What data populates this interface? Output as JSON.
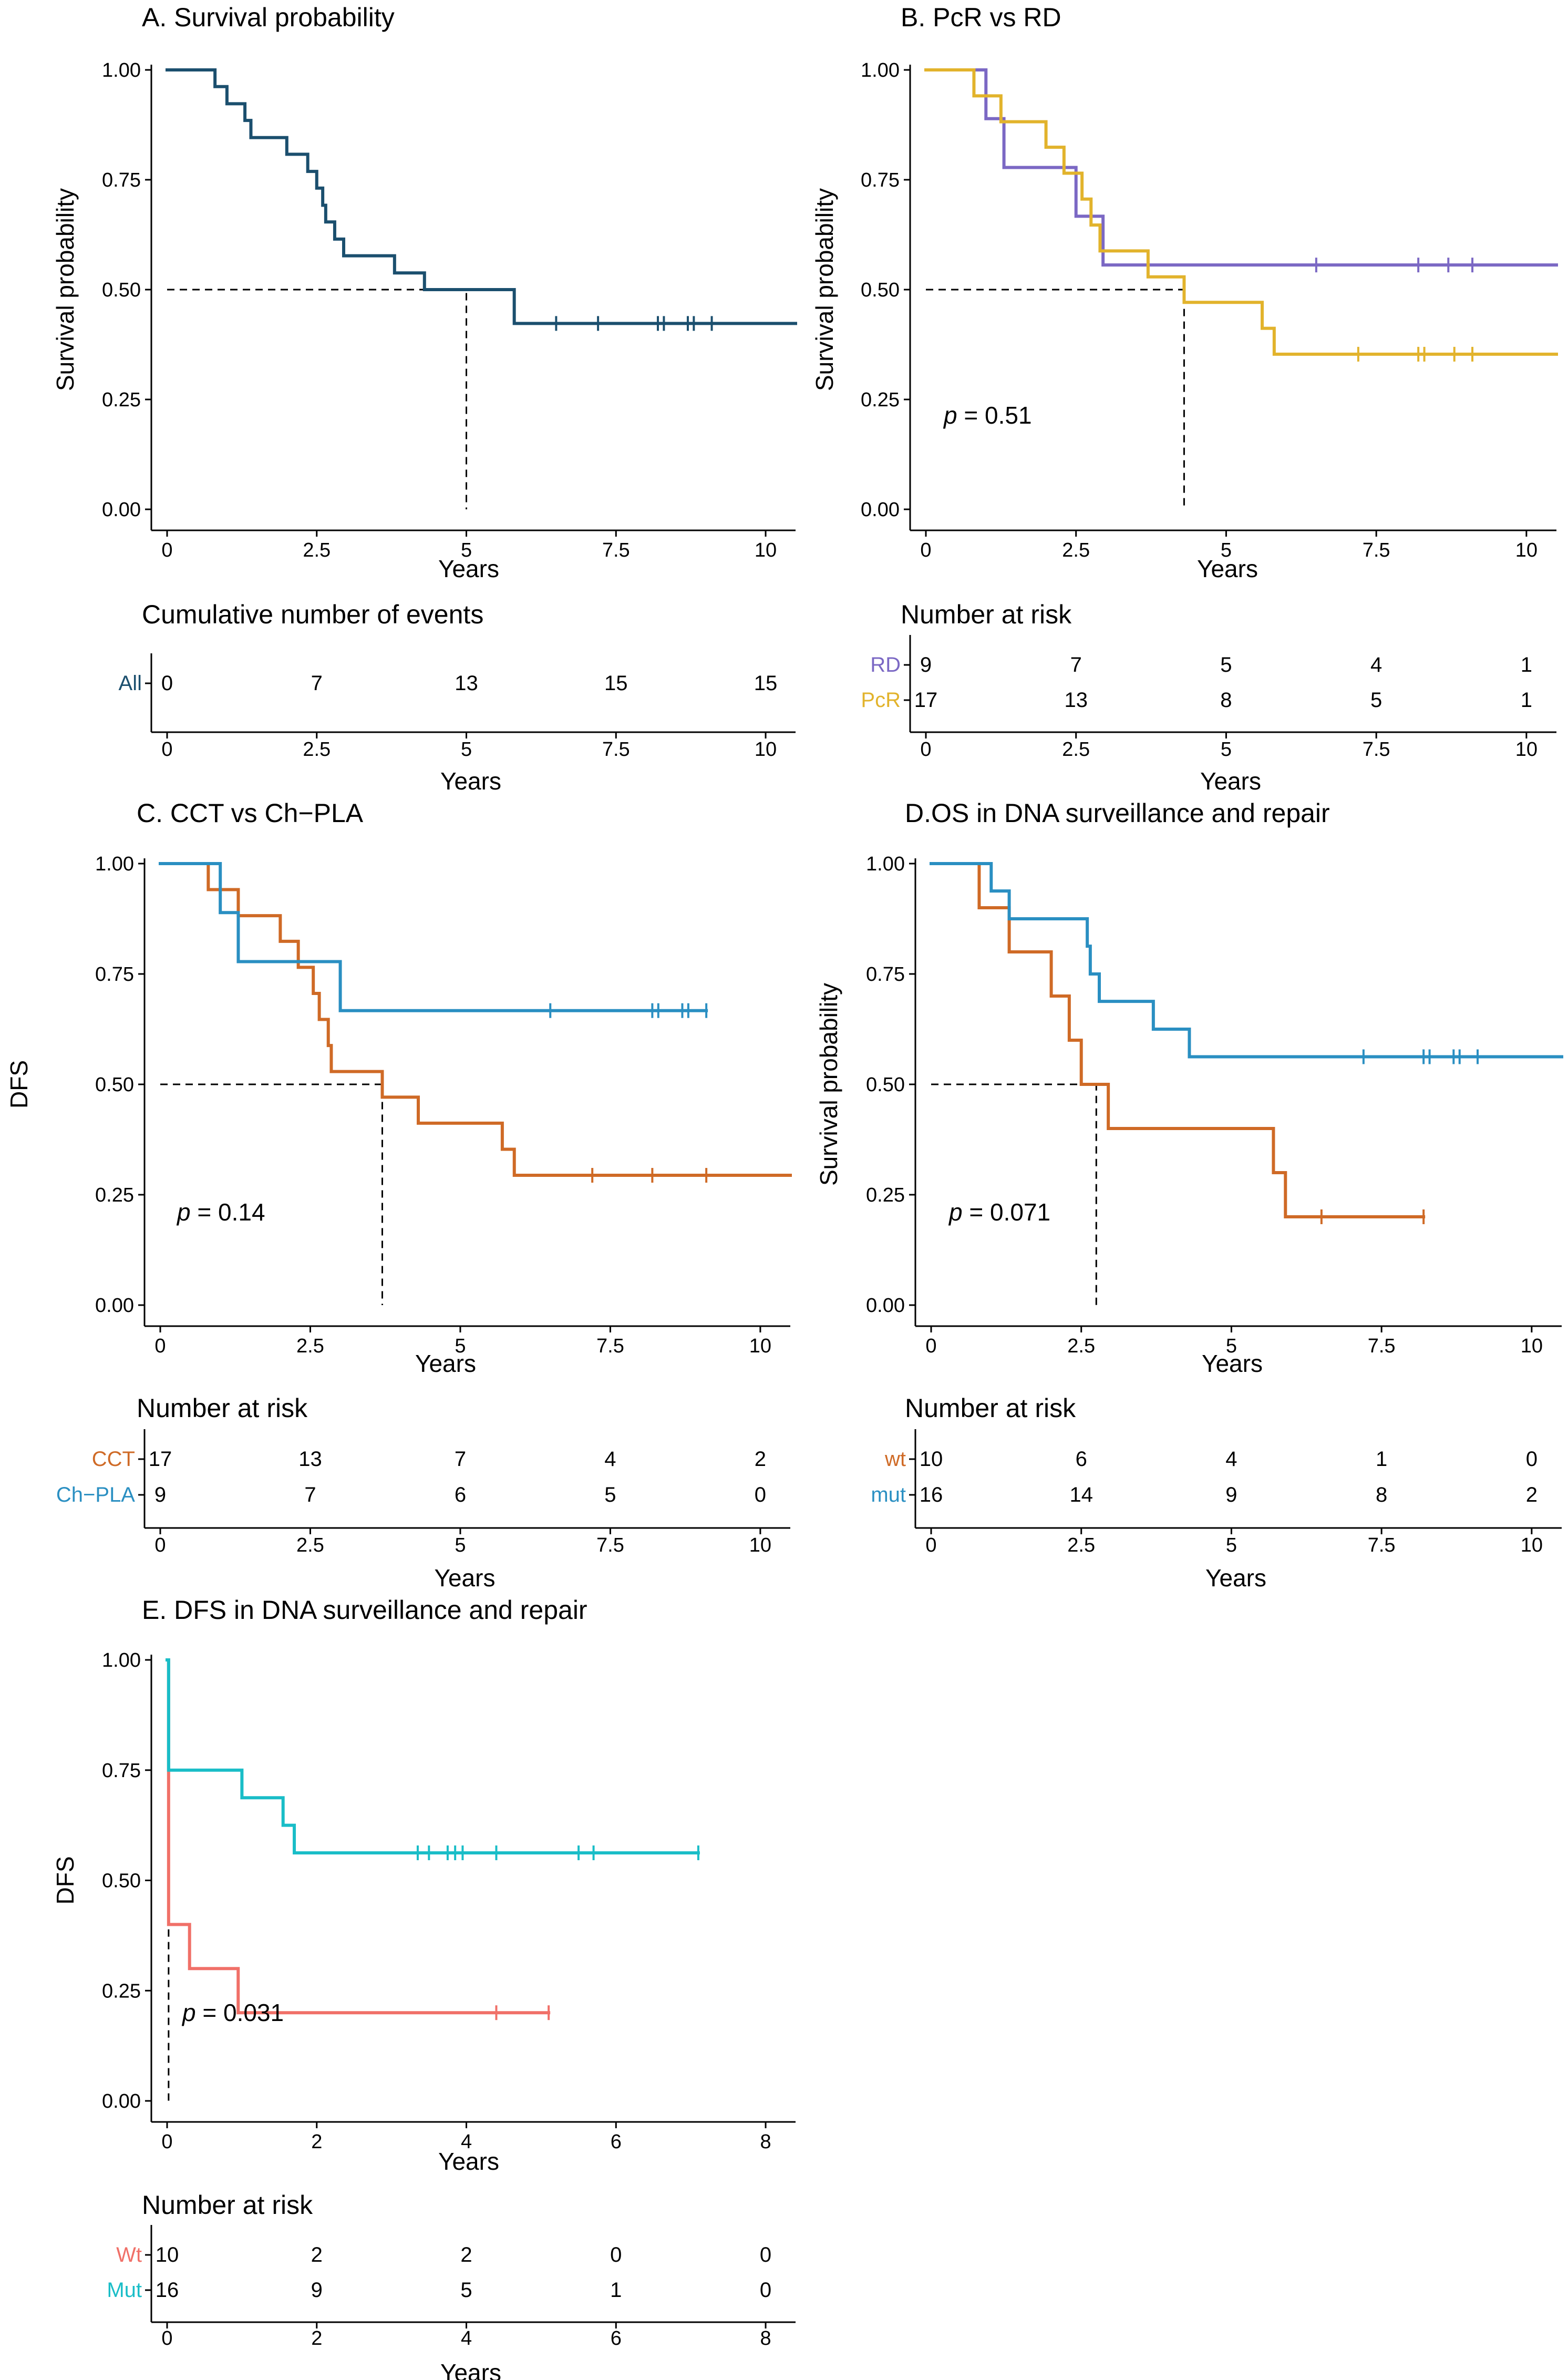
{
  "colors": {
    "navy": "#1b4f6e",
    "purple": "#7b68c4",
    "gold": "#e2b32c",
    "orange": "#cf6a26",
    "blue": "#2a8fc2",
    "salmon": "#f07068",
    "cyan": "#19bdc7"
  },
  "chart_data": [
    {
      "id": "A",
      "type": "line",
      "title": "A. Survival probability",
      "xlabel": "Years",
      "ylabel": "Survival probability",
      "xlim": [
        0,
        10.5
      ],
      "ylim": [
        0,
        1
      ],
      "xticks": [
        0,
        2.5,
        5,
        7.5,
        10
      ],
      "xtick_labels": [
        "0",
        "2.5",
        "5",
        "7.5",
        "10"
      ],
      "yticks": [
        0,
        0.25,
        0.5,
        0.75,
        1
      ],
      "ytick_labels": [
        "0.00",
        "0.25",
        "0.50",
        "0.75",
        "1.00"
      ],
      "median_line": {
        "y": 0.5,
        "x": 5
      },
      "series": [
        {
          "name": "All",
          "color": "#1b4f6e",
          "steps": [
            [
              0,
              1.0
            ],
            [
              0.8,
              0.962
            ],
            [
              1.0,
              0.923
            ],
            [
              1.3,
              0.885
            ],
            [
              1.4,
              0.846
            ],
            [
              2.0,
              0.808
            ],
            [
              2.35,
              0.769
            ],
            [
              2.5,
              0.731
            ],
            [
              2.6,
              0.692
            ],
            [
              2.65,
              0.654
            ],
            [
              2.8,
              0.615
            ],
            [
              2.95,
              0.577
            ],
            [
              3.8,
              0.538
            ],
            [
              4.3,
              0.5
            ],
            [
              5.8,
              0.423
            ],
            [
              10.5,
              0.423
            ]
          ],
          "censored": [
            6.5,
            7.2,
            8.2,
            8.3,
            8.7,
            8.8,
            9.1
          ]
        }
      ],
      "risk_table": {
        "title": "Cumulative number of events",
        "xticks": [
          0,
          2.5,
          5,
          7.5,
          10
        ],
        "xtick_labels": [
          "0",
          "2.5",
          "5",
          "7.5",
          "10"
        ],
        "xlim": [
          0,
          10.5
        ],
        "xlabel": "Years",
        "rows": [
          {
            "label": "All",
            "color": "#1b4f6e",
            "values": [
              "0",
              "7",
              "13",
              "15",
              "15"
            ]
          }
        ]
      }
    },
    {
      "id": "B",
      "type": "line",
      "title": "B. PcR vs RD",
      "xlabel": "Years",
      "ylabel": "Survival probability",
      "pvalue": "0.51",
      "xlim": [
        0,
        10.5
      ],
      "ylim": [
        0,
        1
      ],
      "xticks": [
        0,
        2.5,
        5,
        7.5,
        10
      ],
      "xtick_labels": [
        "0",
        "2.5",
        "5",
        "7.5",
        "10"
      ],
      "yticks": [
        0,
        0.25,
        0.5,
        0.75,
        1
      ],
      "ytick_labels": [
        "0.00",
        "0.25",
        "0.50",
        "0.75",
        "1.00"
      ],
      "median_line": {
        "y": 0.5,
        "x": 4.3
      },
      "series": [
        {
          "name": "RD",
          "color": "#7b68c4",
          "steps": [
            [
              0,
              1.0
            ],
            [
              1.0,
              0.889
            ],
            [
              1.3,
              0.778
            ],
            [
              2.5,
              0.667
            ],
            [
              2.95,
              0.556
            ],
            [
              10.5,
              0.556
            ]
          ],
          "censored": [
            6.5,
            8.2,
            8.7,
            9.1
          ]
        },
        {
          "name": "PcR",
          "color": "#e2b32c",
          "steps": [
            [
              0,
              1.0
            ],
            [
              0.8,
              0.941
            ],
            [
              1.25,
              0.882
            ],
            [
              2.0,
              0.824
            ],
            [
              2.3,
              0.765
            ],
            [
              2.6,
              0.706
            ],
            [
              2.75,
              0.647
            ],
            [
              2.9,
              0.588
            ],
            [
              3.7,
              0.529
            ],
            [
              4.3,
              0.471
            ],
            [
              5.6,
              0.412
            ],
            [
              5.8,
              0.353
            ],
            [
              10.5,
              0.353
            ]
          ],
          "censored": [
            7.2,
            8.2,
            8.3,
            8.8,
            9.1
          ]
        }
      ],
      "risk_table": {
        "title": "Number at risk",
        "xticks": [
          0,
          2.5,
          5,
          7.5,
          10
        ],
        "xtick_labels": [
          "0",
          "2.5",
          "5",
          "7.5",
          "10"
        ],
        "xlim": [
          0,
          10.5
        ],
        "xlabel": "Years",
        "rows": [
          {
            "label": "RD",
            "color": "#7b68c4",
            "values": [
              "9",
              "7",
              "5",
              "4",
              "1"
            ]
          },
          {
            "label": "PcR",
            "color": "#e2b32c",
            "values": [
              "17",
              "13",
              "8",
              "5",
              "1"
            ]
          }
        ]
      }
    },
    {
      "id": "C",
      "type": "line",
      "title": "C. CCT vs Ch−PLA",
      "xlabel": "Years",
      "ylabel": "DFS",
      "pvalue": "0.14",
      "xlim": [
        0,
        10.5
      ],
      "ylim": [
        0,
        1
      ],
      "xticks": [
        0,
        2.5,
        5,
        7.5,
        10
      ],
      "xtick_labels": [
        "0",
        "2.5",
        "5",
        "7.5",
        "10"
      ],
      "yticks": [
        0,
        0.25,
        0.5,
        0.75,
        1
      ],
      "ytick_labels": [
        "0.00",
        "0.25",
        "0.50",
        "0.75",
        "1.00"
      ],
      "median_line": {
        "y": 0.5,
        "x": 3.7
      },
      "series": [
        {
          "name": "CCT",
          "color": "#cf6a26",
          "steps": [
            [
              0,
              1.0
            ],
            [
              0.8,
              0.941
            ],
            [
              1.3,
              0.882
            ],
            [
              2.0,
              0.824
            ],
            [
              2.3,
              0.765
            ],
            [
              2.55,
              0.706
            ],
            [
              2.65,
              0.647
            ],
            [
              2.8,
              0.588
            ],
            [
              2.85,
              0.529
            ],
            [
              3.7,
              0.471
            ],
            [
              4.3,
              0.412
            ],
            [
              5.7,
              0.353
            ],
            [
              5.9,
              0.294
            ],
            [
              10.5,
              0.294
            ]
          ],
          "censored": [
            7.2,
            8.2,
            9.1
          ]
        },
        {
          "name": "Ch−PLA",
          "color": "#2a8fc2",
          "steps": [
            [
              0,
              1.0
            ],
            [
              1.0,
              0.889
            ],
            [
              1.3,
              0.778
            ],
            [
              3.0,
              0.667
            ],
            [
              9.1,
              0.667
            ]
          ],
          "censored": [
            6.5,
            8.2,
            8.3,
            8.7,
            8.8,
            9.1
          ]
        }
      ],
      "risk_table": {
        "title": "Number at risk",
        "xticks": [
          0,
          2.5,
          5,
          7.5,
          10
        ],
        "xtick_labels": [
          "0",
          "2.5",
          "5",
          "7.5",
          "10"
        ],
        "xlim": [
          0,
          10.5
        ],
        "xlabel": "Years",
        "rows": [
          {
            "label": "CCT",
            "color": "#cf6a26",
            "values": [
              "17",
              "13",
              "7",
              "4",
              "2"
            ]
          },
          {
            "label": "Ch−PLA",
            "color": "#2a8fc2",
            "values": [
              "9",
              "7",
              "6",
              "5",
              "0"
            ]
          }
        ]
      }
    },
    {
      "id": "D",
      "type": "line",
      "title": "D.OS in DNA surveillance and repair",
      "xlabel": "Years",
      "ylabel": "Survival probability",
      "pvalue": "0.071",
      "xlim": [
        0,
        10.5
      ],
      "ylim": [
        0,
        1
      ],
      "xticks": [
        0,
        2.5,
        5,
        7.5,
        10
      ],
      "xtick_labels": [
        "0",
        "2.5",
        "5",
        "7.5",
        "10"
      ],
      "yticks": [
        0,
        0.25,
        0.5,
        0.75,
        1
      ],
      "ytick_labels": [
        "0.00",
        "0.25",
        "0.50",
        "0.75",
        "1.00"
      ],
      "median_line": {
        "y": 0.5,
        "x": 2.75
      },
      "series": [
        {
          "name": "wt",
          "color": "#cf6a26",
          "steps": [
            [
              0,
              1.0
            ],
            [
              0.8,
              0.9
            ],
            [
              1.3,
              0.8
            ],
            [
              2.0,
              0.7
            ],
            [
              2.3,
              0.6
            ],
            [
              2.5,
              0.5
            ],
            [
              2.95,
              0.4
            ],
            [
              5.7,
              0.3
            ],
            [
              5.9,
              0.2
            ],
            [
              8.2,
              0.2
            ]
          ],
          "censored": [
            6.5,
            8.2
          ]
        },
        {
          "name": "mut",
          "color": "#2a8fc2",
          "steps": [
            [
              0,
              1.0
            ],
            [
              1.0,
              0.938
            ],
            [
              1.3,
              0.875
            ],
            [
              2.6,
              0.813
            ],
            [
              2.65,
              0.75
            ],
            [
              2.8,
              0.688
            ],
            [
              3.7,
              0.625
            ],
            [
              4.3,
              0.5625
            ],
            [
              10.5,
              0.5625
            ]
          ],
          "censored": [
            7.2,
            8.2,
            8.3,
            8.7,
            8.8,
            9.1
          ]
        }
      ],
      "risk_table": {
        "title": "Number at risk",
        "xticks": [
          0,
          2.5,
          5,
          7.5,
          10
        ],
        "xtick_labels": [
          "0",
          "2.5",
          "5",
          "7.5",
          "10"
        ],
        "xlim": [
          0,
          10.5
        ],
        "xlabel": "Years",
        "rows": [
          {
            "label": "wt",
            "color": "#cf6a26",
            "values": [
              "10",
              "6",
              "4",
              "1",
              "0"
            ]
          },
          {
            "label": "mut",
            "color": "#2a8fc2",
            "values": [
              "16",
              "14",
              "9",
              "8",
              "2"
            ]
          }
        ]
      }
    },
    {
      "id": "E",
      "type": "line",
      "title": "E. DFS in DNA surveillance and repair",
      "xlabel": "Years",
      "ylabel": "DFS",
      "pvalue": "0.031",
      "xlim": [
        0,
        8.4
      ],
      "ylim": [
        0,
        1
      ],
      "xticks": [
        0,
        2,
        4,
        6,
        8
      ],
      "xtick_labels": [
        "0",
        "2",
        "4",
        "6",
        "8"
      ],
      "yticks": [
        0,
        0.25,
        0.5,
        0.75,
        1
      ],
      "ytick_labels": [
        "0.00",
        "0.25",
        "0.50",
        "0.75",
        "1.00"
      ],
      "median_line": {
        "y": 0.5,
        "x": 0.02
      },
      "series": [
        {
          "name": "Wt",
          "color": "#f07068",
          "steps": [
            [
              0,
              1.0
            ],
            [
              0.02,
              0.4
            ],
            [
              0.3,
              0.3
            ],
            [
              0.95,
              0.2
            ],
            [
              5.1,
              0.2
            ]
          ],
          "censored": [
            4.4,
            5.1
          ]
        },
        {
          "name": "Mut",
          "color": "#19bdc7",
          "steps": [
            [
              0,
              1.0
            ],
            [
              0.02,
              0.75
            ],
            [
              1.0,
              0.6875
            ],
            [
              1.55,
              0.625
            ],
            [
              1.7,
              0.5625
            ],
            [
              7.1,
              0.5625
            ]
          ],
          "censored": [
            3.35,
            3.5,
            3.75,
            3.85,
            3.95,
            4.4,
            5.5,
            5.7,
            7.1
          ]
        }
      ],
      "risk_table": {
        "title": "Number at risk",
        "xticks": [
          0,
          2,
          4,
          6,
          8
        ],
        "xtick_labels": [
          "0",
          "2",
          "4",
          "6",
          "8"
        ],
        "xlim": [
          0,
          8.4
        ],
        "xlabel": "Years",
        "rows": [
          {
            "label": "Wt",
            "color": "#f07068",
            "values": [
              "10",
              "2",
              "2",
              "0",
              "0"
            ]
          },
          {
            "label": "Mut",
            "color": "#19bdc7",
            "values": [
              "16",
              "9",
              "5",
              "1",
              "0"
            ]
          }
        ]
      }
    }
  ]
}
